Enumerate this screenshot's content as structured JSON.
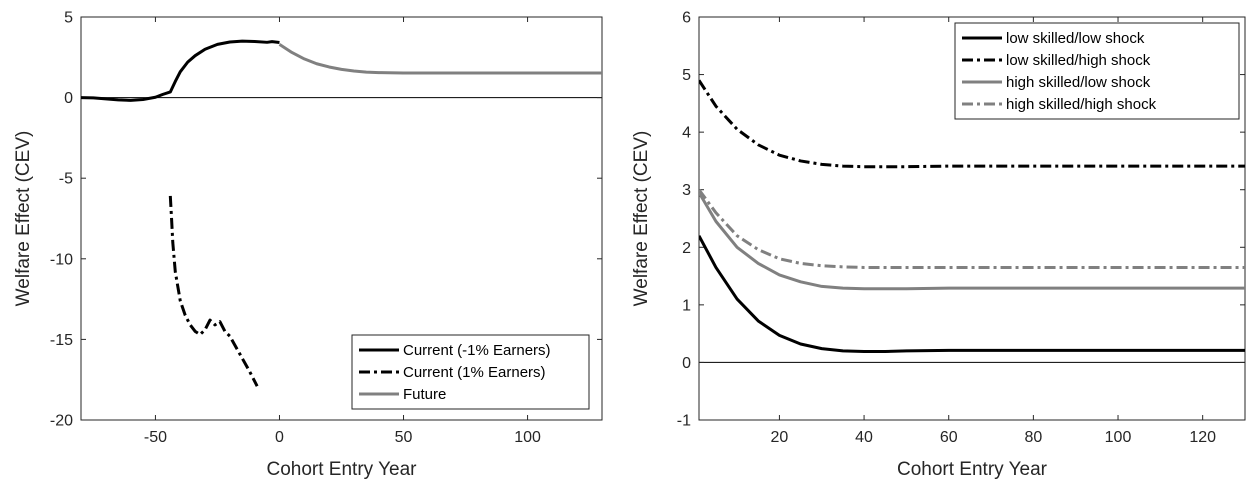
{
  "chart_data": [
    {
      "type": "line",
      "xlabel": "Cohort Entry Year",
      "ylabel": "Welfare Effect (CEV)",
      "xlim": [
        -80,
        130
      ],
      "ylim": [
        -20,
        5
      ],
      "xticks": [
        -50,
        0,
        50,
        100
      ],
      "yticks": [
        -20,
        -15,
        -10,
        -5,
        0,
        5
      ],
      "zero_line": true,
      "grid": false,
      "legend_position": "bottom-right",
      "series": [
        {
          "name": "Current (-1% Earners)",
          "color": "#000000",
          "dash": "solid",
          "x": [
            -80,
            -75,
            -70,
            -65,
            -60,
            -55,
            -50,
            -47,
            -44,
            -42,
            -40,
            -37,
            -34,
            -30,
            -25,
            -20,
            -15,
            -10,
            -5,
            -3,
            0
          ],
          "y": [
            0,
            -0.02,
            -0.08,
            -0.14,
            -0.17,
            -0.12,
            0.02,
            0.2,
            0.35,
            1.0,
            1.6,
            2.2,
            2.6,
            3.0,
            3.3,
            3.45,
            3.5,
            3.48,
            3.43,
            3.47,
            3.42
          ]
        },
        {
          "name": "Current (1% Earners)",
          "color": "#000000",
          "dash": "dashdot",
          "x": [
            -44,
            -43.5,
            -43,
            -42,
            -41,
            -40,
            -38,
            -36,
            -34,
            -32,
            -30,
            -28,
            -26,
            -24,
            -22,
            -20,
            -16,
            -12,
            -9
          ],
          "y": [
            -6.1,
            -7.5,
            -9.0,
            -10.8,
            -11.7,
            -12.6,
            -13.5,
            -14.1,
            -14.5,
            -14.7,
            -14.4,
            -13.8,
            -14.1,
            -13.9,
            -14.5,
            -14.8,
            -15.9,
            -17.0,
            -17.9
          ]
        },
        {
          "name": "Future",
          "color": "#808080",
          "dash": "solid",
          "x": [
            0,
            5,
            10,
            15,
            20,
            25,
            30,
            35,
            40,
            50,
            60,
            80,
            100,
            130
          ],
          "y": [
            3.3,
            2.8,
            2.4,
            2.1,
            1.9,
            1.75,
            1.65,
            1.58,
            1.55,
            1.53,
            1.53,
            1.53,
            1.53,
            1.53
          ]
        }
      ]
    },
    {
      "type": "line",
      "xlabel": "Cohort Entry Year",
      "ylabel": "Welfare Effect (CEV)",
      "xlim": [
        1,
        130
      ],
      "ylim": [
        -1,
        6
      ],
      "xticks": [
        20,
        40,
        60,
        80,
        100,
        120
      ],
      "yticks": [
        -1,
        0,
        1,
        2,
        3,
        4,
        5,
        6
      ],
      "zero_line": true,
      "grid": false,
      "legend_position": "top-right",
      "series": [
        {
          "name": "low skilled/low shock",
          "color": "#000000",
          "dash": "solid",
          "x": [
            1,
            5,
            10,
            15,
            20,
            25,
            30,
            35,
            40,
            45,
            50,
            60,
            80,
            100,
            130
          ],
          "y": [
            2.2,
            1.65,
            1.1,
            0.72,
            0.47,
            0.32,
            0.24,
            0.2,
            0.19,
            0.19,
            0.2,
            0.21,
            0.21,
            0.21,
            0.21
          ]
        },
        {
          "name": "low skilled/high shock",
          "color": "#000000",
          "dash": "dashdot",
          "x": [
            1,
            5,
            10,
            15,
            20,
            25,
            30,
            35,
            40,
            45,
            50,
            60,
            80,
            100,
            130
          ],
          "y": [
            4.9,
            4.45,
            4.05,
            3.78,
            3.6,
            3.5,
            3.44,
            3.41,
            3.4,
            3.4,
            3.4,
            3.41,
            3.41,
            3.41,
            3.41
          ]
        },
        {
          "name": "high skilled/low shock",
          "color": "#808080",
          "dash": "solid",
          "x": [
            1,
            5,
            10,
            15,
            20,
            25,
            30,
            35,
            40,
            45,
            50,
            60,
            80,
            100,
            130
          ],
          "y": [
            2.95,
            2.45,
            2.0,
            1.72,
            1.52,
            1.4,
            1.32,
            1.29,
            1.28,
            1.28,
            1.28,
            1.29,
            1.29,
            1.29,
            1.29
          ]
        },
        {
          "name": "high skilled/high shock",
          "color": "#808080",
          "dash": "dashdot",
          "x": [
            1,
            5,
            10,
            15,
            20,
            25,
            30,
            35,
            40,
            45,
            50,
            60,
            80,
            100,
            130
          ],
          "y": [
            3.0,
            2.6,
            2.2,
            1.96,
            1.8,
            1.72,
            1.68,
            1.66,
            1.65,
            1.65,
            1.65,
            1.65,
            1.65,
            1.65,
            1.65
          ]
        }
      ]
    }
  ]
}
